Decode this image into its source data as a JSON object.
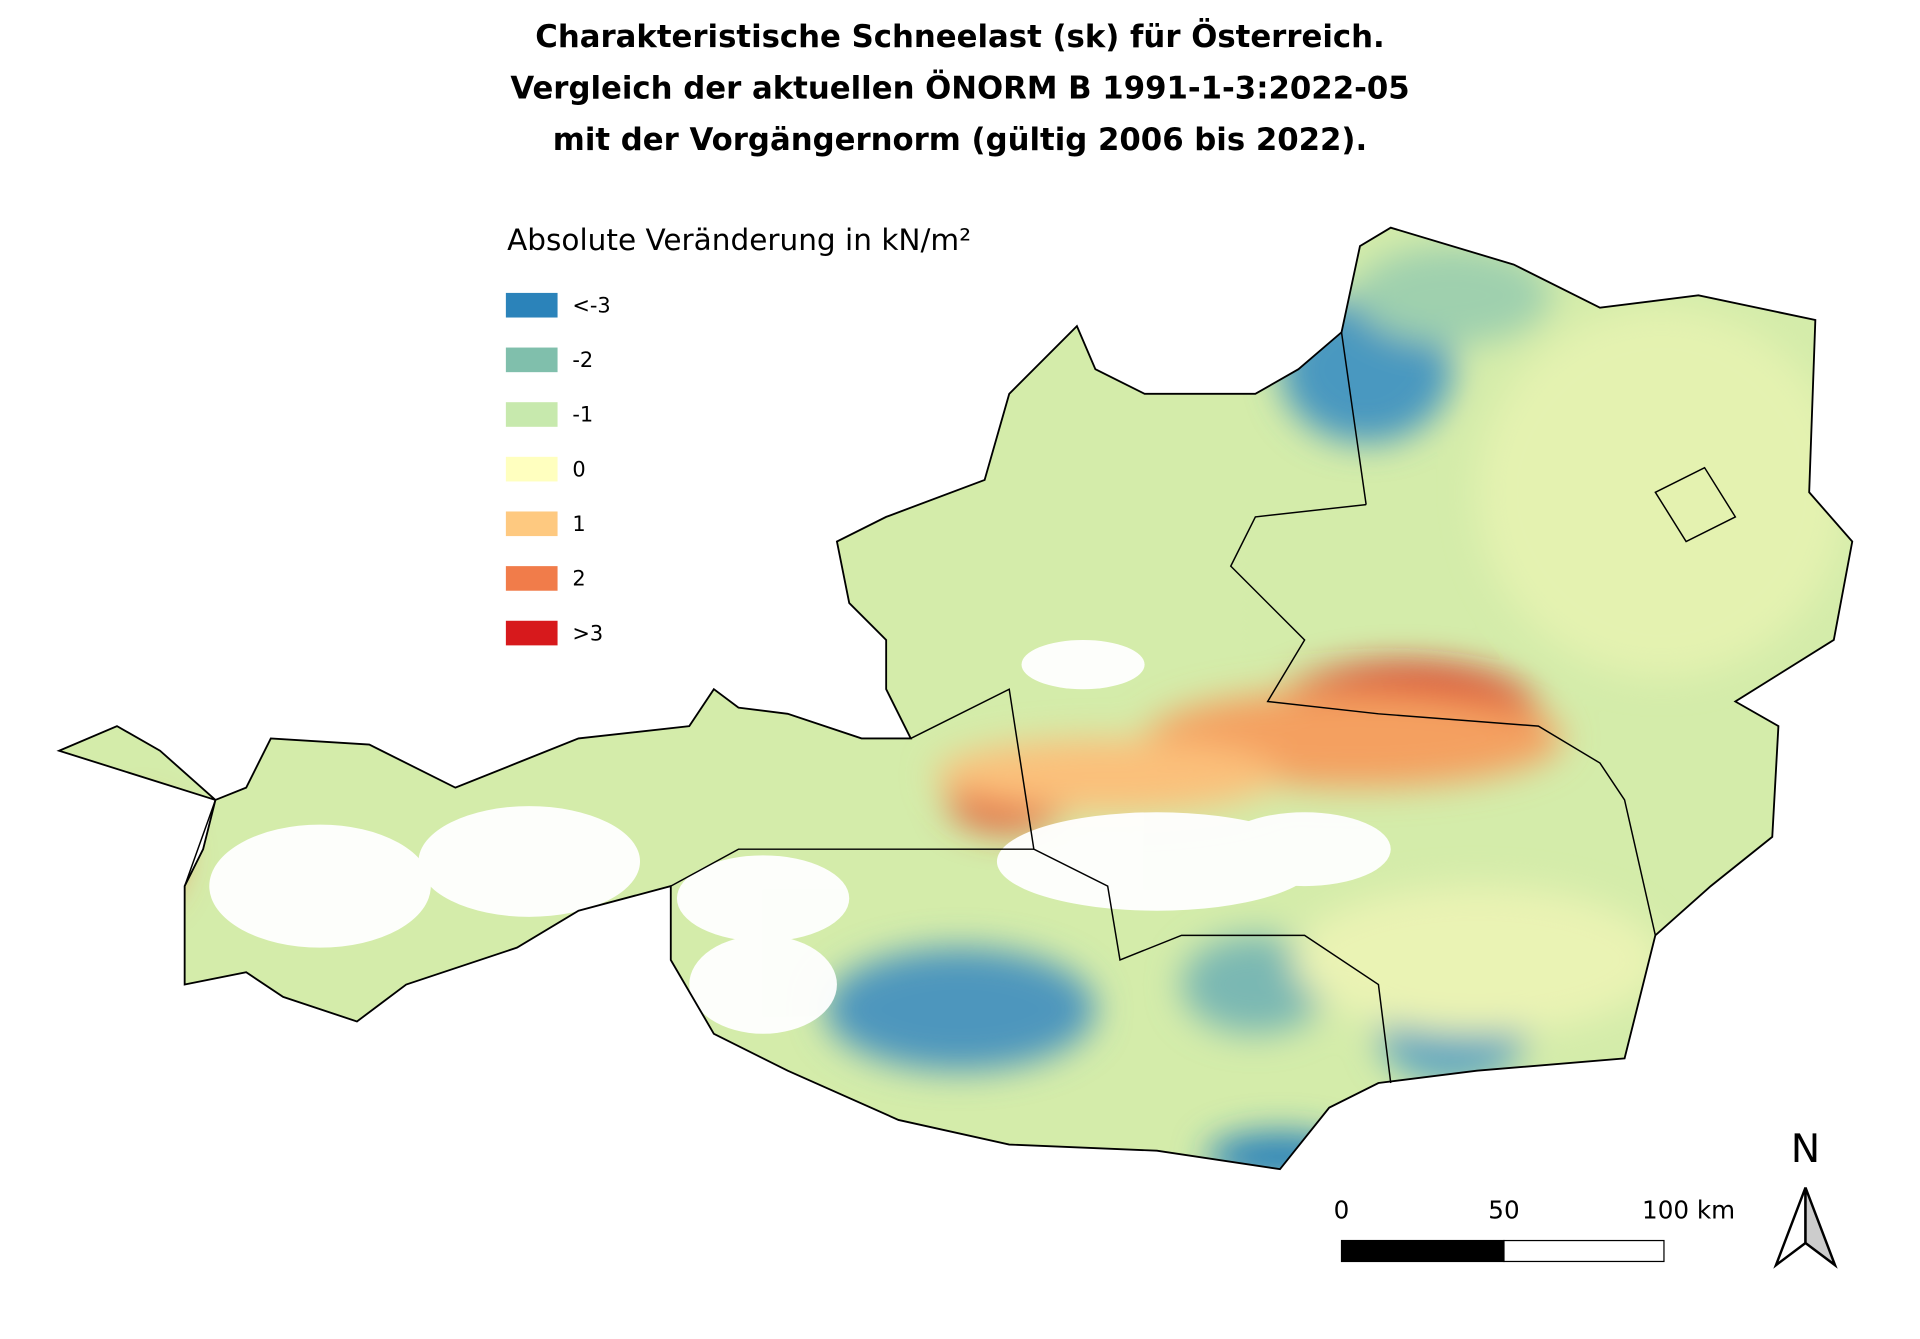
{
  "title": [
    "Charakteristische Schneelast (sk) für Österreich.",
    "Vergleich der aktuellen ÖNORM B 1991-1-3:2022-05",
    "mit der Vorgängernorm (gültig 2006 bis 2022)."
  ],
  "legend": {
    "title": "Absolute Veränderung in kN/m²",
    "items": [
      {
        "label": "<-3",
        "color": "#2b83ba"
      },
      {
        "label": "-2",
        "color": "#80bfac"
      },
      {
        "label": "-1",
        "color": "#c7e9ad"
      },
      {
        "label": "0",
        "color": "#ffffbf"
      },
      {
        "label": "1",
        "color": "#fec980"
      },
      {
        "label": "2",
        "color": "#f17c4a"
      },
      {
        "label": ">3",
        "color": "#d7191c"
      }
    ]
  },
  "scale_bar": {
    "labels": [
      "0",
      "50",
      "100 km"
    ]
  },
  "north_arrow": {
    "label": "N"
  }
}
